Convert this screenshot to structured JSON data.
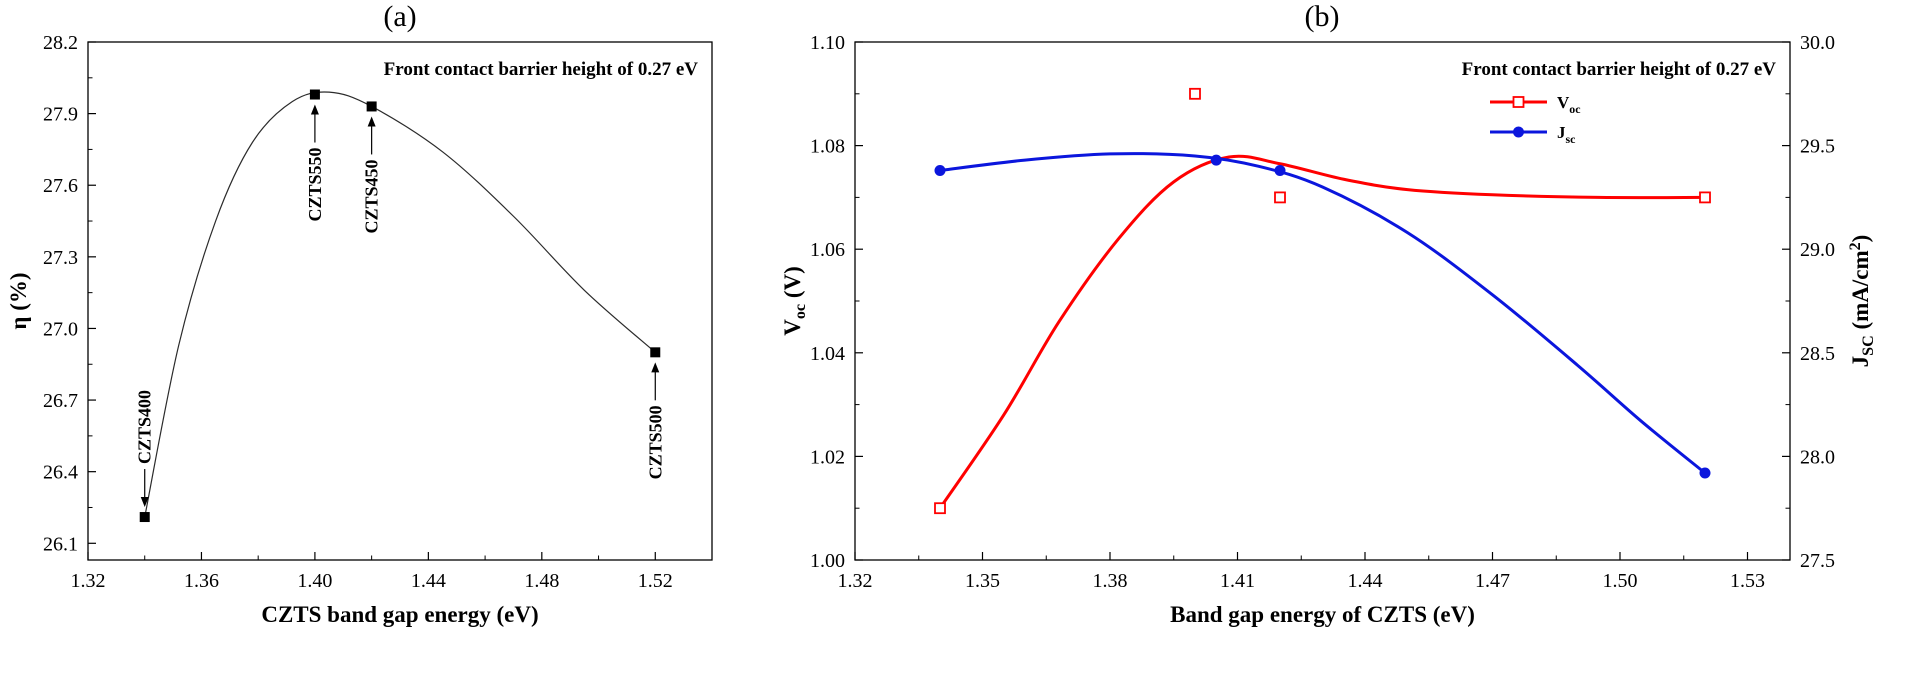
{
  "figure": {
    "background": "#ffffff",
    "text_color": "#000000"
  },
  "chart_data": [
    {
      "id": "a",
      "type": "line",
      "panel_label": "(a)",
      "annotation": "Front contact barrier height of 0.27 eV",
      "xlabel": "CZTS band gap energy (eV)",
      "xlim": [
        1.32,
        1.54
      ],
      "xticks": [
        1.32,
        1.36,
        1.4,
        1.44,
        1.48,
        1.52
      ],
      "xtick_decimals": 2,
      "axes_y": [
        {
          "side": "left",
          "label": "η (%)",
          "lim": [
            26.03,
            28.2
          ],
          "ticks": [
            26.1,
            26.4,
            26.7,
            27.0,
            27.3,
            27.6,
            27.9,
            28.2
          ],
          "decimals": 1
        }
      ],
      "series": [
        {
          "name": "efficiency",
          "axis": "left",
          "color": "#2b2b2b",
          "line_width": 1.2,
          "marker": "square-filled",
          "marker_color": "#000000",
          "marker_size": 10,
          "points": [
            [
              1.34,
              26.21
            ],
            [
              1.4,
              27.98
            ],
            [
              1.42,
              27.93
            ],
            [
              1.52,
              26.9
            ]
          ],
          "curve": [
            [
              1.34,
              26.21
            ],
            [
              1.352,
              26.93
            ],
            [
              1.365,
              27.45
            ],
            [
              1.378,
              27.78
            ],
            [
              1.392,
              27.95
            ],
            [
              1.405,
              27.99
            ],
            [
              1.42,
              27.93
            ],
            [
              1.445,
              27.74
            ],
            [
              1.47,
              27.47
            ],
            [
              1.495,
              27.16
            ],
            [
              1.52,
              26.9
            ]
          ]
        }
      ],
      "point_labels": [
        {
          "text": "CZTS400",
          "x": 1.34,
          "y": 26.21,
          "side": "above"
        },
        {
          "text": "CZTS550",
          "x": 1.4,
          "y": 27.98,
          "side": "below"
        },
        {
          "text": "CZTS450",
          "x": 1.42,
          "y": 27.93,
          "side": "below"
        },
        {
          "text": "CZTS500",
          "x": 1.52,
          "y": 26.9,
          "side": "below"
        }
      ]
    },
    {
      "id": "b",
      "type": "line",
      "panel_label": "(b)",
      "annotation": "Front contact barrier height of 0.27 eV",
      "xlabel": "Band gap energy of CZTS (eV)",
      "xlim": [
        1.32,
        1.54
      ],
      "xticks": [
        1.32,
        1.35,
        1.38,
        1.41,
        1.44,
        1.47,
        1.5,
        1.53
      ],
      "xtick_decimals": 2,
      "axes_y": [
        {
          "side": "left",
          "label": "V_{oc} (V)",
          "lim": [
            1.0,
            1.1
          ],
          "ticks": [
            1.0,
            1.02,
            1.04,
            1.06,
            1.08,
            1.1
          ],
          "decimals": 2
        },
        {
          "side": "right",
          "label": "J_{SC} (mA/cm^{2})",
          "lim": [
            27.5,
            30.0
          ],
          "ticks": [
            27.5,
            28.0,
            28.5,
            29.0,
            29.5,
            30.0
          ],
          "decimals": 1
        }
      ],
      "legend": [
        {
          "label": "V_{oc}",
          "series": "Voc"
        },
        {
          "label": "J_{sc}",
          "series": "Jsc"
        }
      ],
      "series": [
        {
          "name": "Voc",
          "axis": "left",
          "color": "#ff0000",
          "line_width": 3,
          "marker": "square-open",
          "marker_color": "#ff0000",
          "marker_size": 10,
          "points": [
            [
              1.34,
              1.01
            ],
            [
              1.4,
              1.09
            ],
            [
              1.42,
              1.07
            ],
            [
              1.52,
              1.07
            ]
          ],
          "curve": [
            [
              1.34,
              1.01
            ],
            [
              1.355,
              1.028
            ],
            [
              1.368,
              1.046
            ],
            [
              1.382,
              1.062
            ],
            [
              1.395,
              1.073
            ],
            [
              1.408,
              1.0778
            ],
            [
              1.42,
              1.0765
            ],
            [
              1.435,
              1.0735
            ],
            [
              1.45,
              1.0715
            ],
            [
              1.47,
              1.0705
            ],
            [
              1.495,
              1.07
            ],
            [
              1.52,
              1.07
            ]
          ]
        },
        {
          "name": "Jsc",
          "axis": "right",
          "color": "#0b16dd",
          "line_width": 3,
          "marker": "circle-filled",
          "marker_color": "#0b16dd",
          "marker_size": 11,
          "points": [
            [
              1.34,
              29.38
            ],
            [
              1.405,
              29.43
            ],
            [
              1.42,
              29.38
            ],
            [
              1.52,
              27.92
            ]
          ],
          "curve": [
            [
              1.34,
              29.38
            ],
            [
              1.36,
              29.43
            ],
            [
              1.38,
              29.46
            ],
            [
              1.4,
              29.45
            ],
            [
              1.415,
              29.4
            ],
            [
              1.43,
              29.3
            ],
            [
              1.45,
              29.08
            ],
            [
              1.47,
              28.78
            ],
            [
              1.49,
              28.44
            ],
            [
              1.505,
              28.17
            ],
            [
              1.52,
              27.92
            ]
          ]
        }
      ]
    }
  ]
}
